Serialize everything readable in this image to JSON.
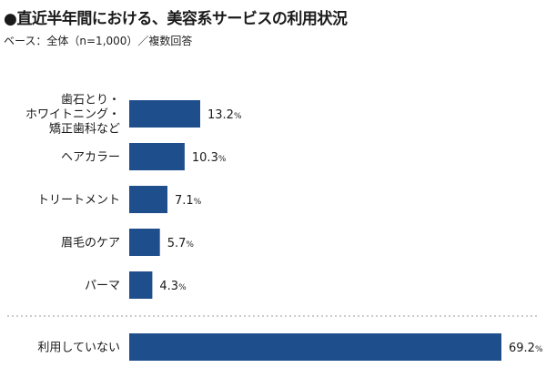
{
  "chart_data": {
    "type": "bar",
    "orientation": "horizontal",
    "title": "●直近半年間における、美容系サービスの利用状況",
    "subtitle": "ベース：全体（n=1,000）／複数回答",
    "categories": [
      [
        "歯石とり・",
        "ホワイトニング・",
        "矯正歯科など"
      ],
      [
        "ヘアカラー"
      ],
      [
        "トリートメント"
      ],
      [
        "眉毛のケア"
      ],
      [
        "パーマ"
      ],
      [
        "利用していない"
      ]
    ],
    "values": [
      13.2,
      10.3,
      7.1,
      5.7,
      4.3,
      69.2
    ],
    "value_labels": [
      "13.2",
      "10.3",
      "7.1",
      "5.7",
      "4.3",
      "69.2"
    ],
    "unit": "%",
    "xlim": [
      0,
      69.2
    ],
    "grid": false,
    "separator_before_last": true,
    "bar_color": "#1f4e8c",
    "separator_color": "#9a9a9a"
  }
}
